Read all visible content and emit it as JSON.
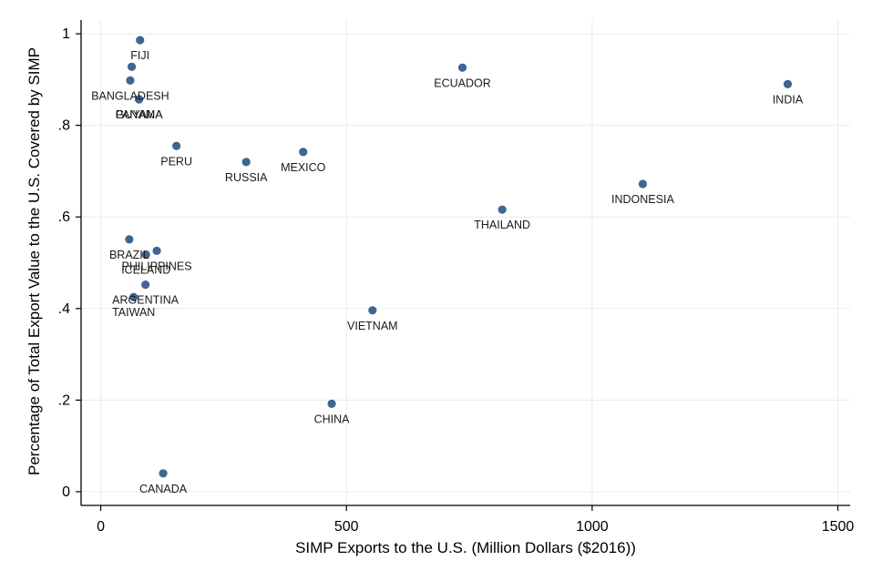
{
  "chart_data": {
    "type": "scatter",
    "title": "",
    "xlabel": "SIMP Exports to the U.S. (Million Dollars ($2016))",
    "ylabel": "Percentage of Total Export Value to the U.S. Covered by SIMP",
    "xlim": [
      -40,
      1525
    ],
    "ylim": [
      -0.03,
      1.03
    ],
    "xticks": [
      0,
      500,
      1000,
      1500
    ],
    "xtick_labels": [
      "0",
      "500",
      "1000",
      "1500"
    ],
    "yticks": [
      0,
      0.2,
      0.4,
      0.6,
      0.8,
      1
    ],
    "ytick_labels": [
      "0",
      ".2",
      ".4",
      ".6",
      ".8",
      "1"
    ],
    "grid": true,
    "marker_color": "#3e6594",
    "points": [
      {
        "label": "FIJI",
        "x": 80,
        "y": 0.986
      },
      {
        "label": "",
        "x": 63,
        "y": 0.928
      },
      {
        "label": "BANGLADESH",
        "x": 60,
        "y": 0.898
      },
      {
        "label": "GUYANA",
        "x": 78,
        "y": 0.857
      },
      {
        "label": "PANAMA",
        "x": 78,
        "y": 0.857
      },
      {
        "label": "PERU",
        "x": 154,
        "y": 0.755
      },
      {
        "label": "RUSSIA",
        "x": 296,
        "y": 0.72
      },
      {
        "label": "MEXICO",
        "x": 412,
        "y": 0.742
      },
      {
        "label": "ECUADOR",
        "x": 736,
        "y": 0.926
      },
      {
        "label": "INDIA",
        "x": 1398,
        "y": 0.89
      },
      {
        "label": "INDONESIA",
        "x": 1103,
        "y": 0.672
      },
      {
        "label": "THAILAND",
        "x": 817,
        "y": 0.616
      },
      {
        "label": "BRAZIL",
        "x": 58,
        "y": 0.551
      },
      {
        "label": "PHILIPPINES",
        "x": 114,
        "y": 0.526
      },
      {
        "label": "ICELAND",
        "x": 92,
        "y": 0.518
      },
      {
        "label": "ARGENTINA",
        "x": 91,
        "y": 0.452
      },
      {
        "label": "TAIWAN",
        "x": 67,
        "y": 0.425
      },
      {
        "label": "VIETNAM",
        "x": 553,
        "y": 0.396
      },
      {
        "label": "CHINA",
        "x": 470,
        "y": 0.192
      },
      {
        "label": "CANADA",
        "x": 127,
        "y": 0.04
      }
    ]
  }
}
